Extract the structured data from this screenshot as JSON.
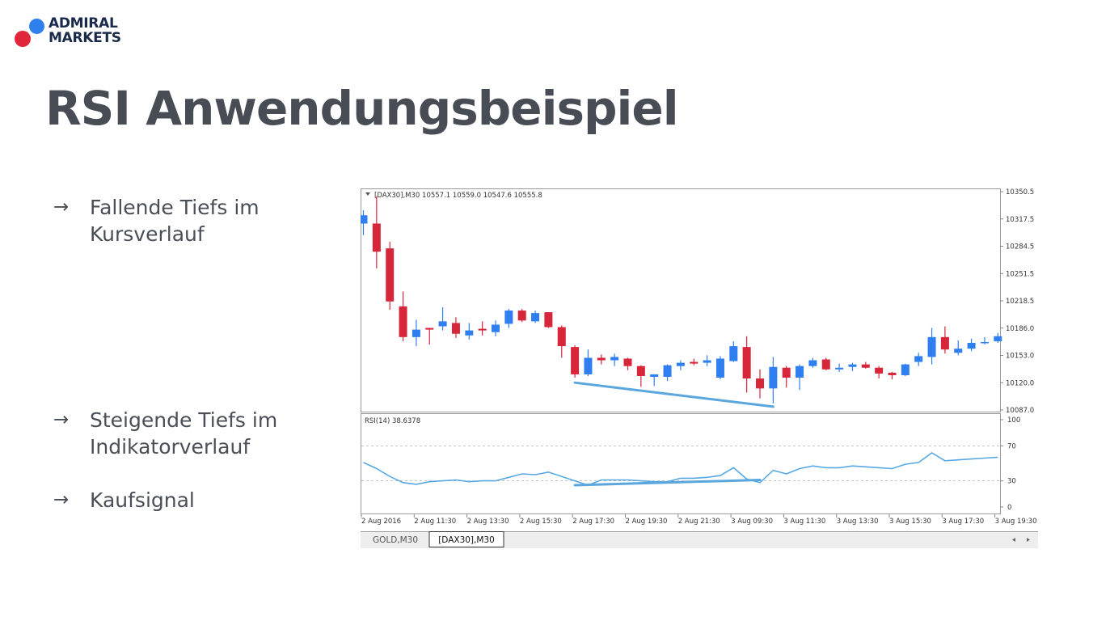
{
  "logo": {
    "line1": "ADMIRAL",
    "line2": "MARKETS"
  },
  "title": "RSI Anwendungsbeispiel",
  "bullets": [
    {
      "arrow": "→",
      "line1": "Fallende Tiefs im",
      "line2": "Kursverlauf"
    },
    {
      "arrow": "→",
      "line1": "Steigende Tiefs im",
      "line2": "Indikatorverlauf"
    },
    {
      "arrow": "→",
      "line1": "Kaufsignal",
      "line2": ""
    }
  ],
  "chart": {
    "header": "[DAX30],M30   10557.1 10559.0 10547.6 10555.8",
    "rsi_label": "RSI(14) 38.6378",
    "price_ticks": [
      "10350.5",
      "10317.5",
      "10284.5",
      "10251.5",
      "10218.5",
      "10186.0",
      "10153.0",
      "10120.0",
      "10087.0"
    ],
    "rsi_ticks": [
      "100",
      "70",
      "30",
      "0"
    ],
    "time_labels": [
      "2 Aug 2016",
      "2 Aug 11:30",
      "2 Aug 13:30",
      "2 Aug 15:30",
      "2 Aug 17:30",
      "2 Aug 19:30",
      "2 Aug 21:30",
      "3 Aug 09:30",
      "3 Aug 11:30",
      "3 Aug 13:30",
      "3 Aug 15:30",
      "3 Aug 17:30",
      "3 Aug 19:30"
    ],
    "tabs": [
      {
        "label": "GOLD,M30",
        "active": false
      },
      {
        "label": "[DAX30],M30",
        "active": true
      }
    ],
    "colors": {
      "bull": "#2f7ff0",
      "bear": "#d7263a",
      "rsi_line": "#58a9e3",
      "trend_line": "#5aa6dd"
    }
  },
  "chart_data": {
    "type": "candlestick",
    "ylim": [
      10087.0,
      10350.5
    ],
    "rsi_ylim": [
      0,
      100
    ],
    "rsi_levels": [
      70,
      30
    ],
    "candles": [
      {
        "o": 10312,
        "h": 10328,
        "l": 10298,
        "c": 10322
      },
      {
        "o": 10312,
        "h": 10345,
        "l": 10258,
        "c": 10278
      },
      {
        "o": 10282,
        "h": 10290,
        "l": 10208,
        "c": 10218
      },
      {
        "o": 10212,
        "h": 10230,
        "l": 10170,
        "c": 10175
      },
      {
        "o": 10175,
        "h": 10196,
        "l": 10164,
        "c": 10184
      },
      {
        "o": 10186,
        "h": 10186,
        "l": 10166,
        "c": 10184
      },
      {
        "o": 10188,
        "h": 10211,
        "l": 10183,
        "c": 10194
      },
      {
        "o": 10192,
        "h": 10199,
        "l": 10174,
        "c": 10179
      },
      {
        "o": 10177,
        "h": 10192,
        "l": 10172,
        "c": 10183
      },
      {
        "o": 10185,
        "h": 10194,
        "l": 10177,
        "c": 10183
      },
      {
        "o": 10181,
        "h": 10195,
        "l": 10176,
        "c": 10190
      },
      {
        "o": 10191,
        "h": 10209,
        "l": 10186,
        "c": 10207
      },
      {
        "o": 10207,
        "h": 10209,
        "l": 10193,
        "c": 10195
      },
      {
        "o": 10194,
        "h": 10207,
        "l": 10192,
        "c": 10204
      },
      {
        "o": 10205,
        "h": 10205,
        "l": 10186,
        "c": 10187
      },
      {
        "o": 10187,
        "h": 10189,
        "l": 10150,
        "c": 10164
      },
      {
        "o": 10163,
        "h": 10165,
        "l": 10126,
        "c": 10130
      },
      {
        "o": 10130,
        "h": 10160,
        "l": 10128,
        "c": 10150
      },
      {
        "o": 10150,
        "h": 10154,
        "l": 10142,
        "c": 10147
      },
      {
        "o": 10147,
        "h": 10155,
        "l": 10140,
        "c": 10151
      },
      {
        "o": 10149,
        "h": 10150,
        "l": 10135,
        "c": 10140
      },
      {
        "o": 10140,
        "h": 10141,
        "l": 10115,
        "c": 10128
      },
      {
        "o": 10127,
        "h": 10130,
        "l": 10116,
        "c": 10130
      },
      {
        "o": 10127,
        "h": 10142,
        "l": 10122,
        "c": 10141
      },
      {
        "o": 10140,
        "h": 10147,
        "l": 10135,
        "c": 10144
      },
      {
        "o": 10145,
        "h": 10149,
        "l": 10141,
        "c": 10143
      },
      {
        "o": 10144,
        "h": 10153,
        "l": 10140,
        "c": 10147
      },
      {
        "o": 10126,
        "h": 10152,
        "l": 10124,
        "c": 10149
      },
      {
        "o": 10146,
        "h": 10170,
        "l": 10145,
        "c": 10164
      },
      {
        "o": 10163,
        "h": 10176,
        "l": 10108,
        "c": 10125
      },
      {
        "o": 10125,
        "h": 10136,
        "l": 10101,
        "c": 10113
      },
      {
        "o": 10113,
        "h": 10151,
        "l": 10095,
        "c": 10139
      },
      {
        "o": 10138,
        "h": 10140,
        "l": 10114,
        "c": 10126
      },
      {
        "o": 10126,
        "h": 10142,
        "l": 10111,
        "c": 10140
      },
      {
        "o": 10140,
        "h": 10150,
        "l": 10138,
        "c": 10147
      },
      {
        "o": 10148,
        "h": 10150,
        "l": 10135,
        "c": 10136
      },
      {
        "o": 10136,
        "h": 10143,
        "l": 10133,
        "c": 10138
      },
      {
        "o": 10139,
        "h": 10144,
        "l": 10134,
        "c": 10142
      },
      {
        "o": 10142,
        "h": 10145,
        "l": 10137,
        "c": 10138
      },
      {
        "o": 10138,
        "h": 10140,
        "l": 10125,
        "c": 10131
      },
      {
        "o": 10132,
        "h": 10133,
        "l": 10124,
        "c": 10129
      },
      {
        "o": 10129,
        "h": 10143,
        "l": 10128,
        "c": 10142
      },
      {
        "o": 10145,
        "h": 10156,
        "l": 10140,
        "c": 10152
      },
      {
        "o": 10151,
        "h": 10186,
        "l": 10142,
        "c": 10175
      },
      {
        "o": 10175,
        "h": 10188,
        "l": 10155,
        "c": 10160
      },
      {
        "o": 10156,
        "h": 10171,
        "l": 10153,
        "c": 10161
      },
      {
        "o": 10161,
        "h": 10173,
        "l": 10158,
        "c": 10168
      },
      {
        "o": 10168,
        "h": 10175,
        "l": 10166,
        "c": 10169
      },
      {
        "o": 10170,
        "h": 10180,
        "l": 10168,
        "c": 10176
      }
    ],
    "rsi": [
      51,
      44,
      35,
      28,
      26,
      29,
      30,
      31,
      29,
      30,
      30,
      34,
      38,
      37,
      40,
      35,
      30,
      25,
      31,
      31,
      31,
      30,
      29,
      29,
      33,
      33,
      34,
      36,
      45,
      32,
      28,
      42,
      38,
      44,
      47,
      45,
      45,
      47,
      46,
      45,
      44,
      49,
      51,
      62,
      53,
      54,
      55,
      56,
      57
    ],
    "annotations": [
      {
        "panel": "price",
        "from": {
          "candle": 16,
          "value": 10120
        },
        "to": {
          "candle": 31,
          "value": 10091
        }
      },
      {
        "panel": "rsi",
        "from": {
          "candle": 16,
          "value": 25
        },
        "to": {
          "candle": 30,
          "value": 31
        }
      }
    ]
  }
}
